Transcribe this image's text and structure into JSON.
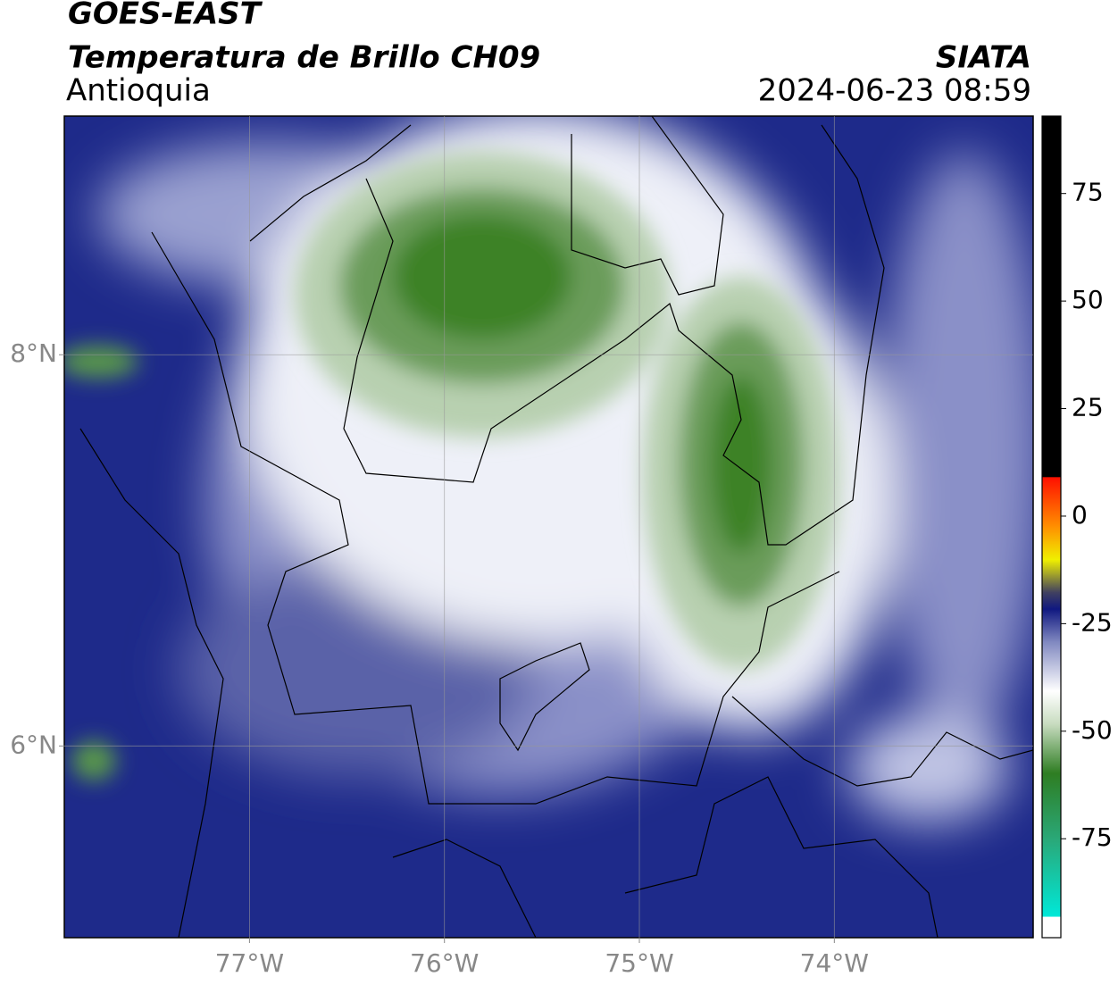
{
  "header": {
    "title": "GOES-EAST",
    "subtitle": "Temperatura de Brillo CH09",
    "region": "Antioquia",
    "source": "SIATA",
    "datetime": "2024-06-23 08:59"
  },
  "map": {
    "xlim": [
      -77.95,
      -72.98
    ],
    "ylim": [
      5.02,
      9.22
    ],
    "xticks": [
      {
        "value": -77,
        "label": "77°W"
      },
      {
        "value": -76,
        "label": "76°W"
      },
      {
        "value": -75,
        "label": "75°W"
      },
      {
        "value": -74,
        "label": "74°W"
      }
    ],
    "yticks": [
      {
        "value": 6,
        "label": "6°N"
      },
      {
        "value": 8,
        "label": "8°N"
      }
    ]
  },
  "colorbar": {
    "lim": [
      -98,
      93
    ],
    "ticks": [
      75,
      50,
      25,
      0,
      -25,
      -50,
      -75
    ]
  }
}
